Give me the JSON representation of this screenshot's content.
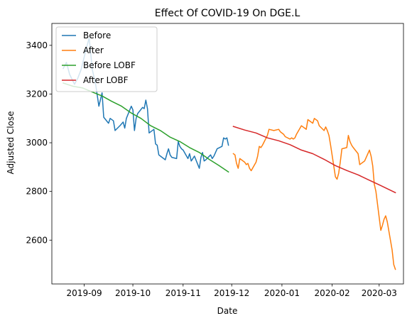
{
  "chart_data": {
    "type": "line",
    "title": "Effect Of COVID-19 On DGE.L",
    "xlabel": "Date",
    "ylabel": "Adjusted Close",
    "xlim": [
      "2019-08-12",
      "2020-03-16"
    ],
    "ylim": [
      2420,
      3490
    ],
    "x_ticks": [
      "2019-09-01",
      "2019-10-01",
      "2019-11-01",
      "2019-12-01",
      "2020-01-01",
      "2020-02-01",
      "2020-03-01"
    ],
    "x_tick_labels": [
      "2019-09",
      "2019-10",
      "2019-11",
      "2019-12",
      "2020-01",
      "2020-02",
      "2020-03"
    ],
    "y_ticks": [
      2600,
      2800,
      3000,
      3200,
      3400
    ],
    "y_tick_labels": [
      "2600",
      "2800",
      "3000",
      "3200",
      "3400"
    ],
    "grid": false,
    "legend_position": "top-left",
    "series": [
      {
        "name": "Before",
        "color": "#1f77b4",
        "points": [
          [
            "2019-08-19",
            3305
          ],
          [
            "2019-08-21",
            3330
          ],
          [
            "2019-08-23",
            3280
          ],
          [
            "2019-08-26",
            3240
          ],
          [
            "2019-08-28",
            3265
          ],
          [
            "2019-08-30",
            3300
          ],
          [
            "2019-09-02",
            3380
          ],
          [
            "2019-09-04",
            3430
          ],
          [
            "2019-09-06",
            3300
          ],
          [
            "2019-09-08",
            3240
          ],
          [
            "2019-09-10",
            3150
          ],
          [
            "2019-09-12",
            3205
          ],
          [
            "2019-09-13",
            3105
          ],
          [
            "2019-09-16",
            3080
          ],
          [
            "2019-09-17",
            3100
          ],
          [
            "2019-09-19",
            3090
          ],
          [
            "2019-09-20",
            3050
          ],
          [
            "2019-09-23",
            3070
          ],
          [
            "2019-09-25",
            3085
          ],
          [
            "2019-09-26",
            3060
          ],
          [
            "2019-09-27",
            3100
          ],
          [
            "2019-09-30",
            3150
          ],
          [
            "2019-10-01",
            3135
          ],
          [
            "2019-10-02",
            3050
          ],
          [
            "2019-10-03",
            3100
          ],
          [
            "2019-10-04",
            3120
          ],
          [
            "2019-10-07",
            3145
          ],
          [
            "2019-10-08",
            3140
          ],
          [
            "2019-10-09",
            3175
          ],
          [
            "2019-10-10",
            3140
          ],
          [
            "2019-10-11",
            3040
          ],
          [
            "2019-10-14",
            3055
          ],
          [
            "2019-10-15",
            2995
          ],
          [
            "2019-10-16",
            2990
          ],
          [
            "2019-10-17",
            2950
          ],
          [
            "2019-10-18",
            2945
          ],
          [
            "2019-10-21",
            2930
          ],
          [
            "2019-10-22",
            2955
          ],
          [
            "2019-10-23",
            2975
          ],
          [
            "2019-10-24",
            2950
          ],
          [
            "2019-10-25",
            2940
          ],
          [
            "2019-10-28",
            2935
          ],
          [
            "2019-10-29",
            3005
          ],
          [
            "2019-10-30",
            2985
          ],
          [
            "2019-10-31",
            2975
          ],
          [
            "2019-11-01",
            2970
          ],
          [
            "2019-11-04",
            2935
          ],
          [
            "2019-11-05",
            2955
          ],
          [
            "2019-11-06",
            2925
          ],
          [
            "2019-11-07",
            2935
          ],
          [
            "2019-11-08",
            2945
          ],
          [
            "2019-11-11",
            2895
          ],
          [
            "2019-11-12",
            2940
          ],
          [
            "2019-11-13",
            2960
          ],
          [
            "2019-11-14",
            2925
          ],
          [
            "2019-11-15",
            2930
          ],
          [
            "2019-11-18",
            2950
          ],
          [
            "2019-11-19",
            2935
          ],
          [
            "2019-11-20",
            2945
          ],
          [
            "2019-11-21",
            2960
          ],
          [
            "2019-11-22",
            2975
          ],
          [
            "2019-11-25",
            2985
          ],
          [
            "2019-11-26",
            3020
          ],
          [
            "2019-11-27",
            3015
          ],
          [
            "2019-11-28",
            3020
          ],
          [
            "2019-11-29",
            2990
          ]
        ]
      },
      {
        "name": "After",
        "color": "#ff7f0e",
        "points": [
          [
            "2019-12-02",
            2955
          ],
          [
            "2019-12-03",
            2950
          ],
          [
            "2019-12-04",
            2915
          ],
          [
            "2019-12-05",
            2895
          ],
          [
            "2019-12-06",
            2935
          ],
          [
            "2019-12-09",
            2920
          ],
          [
            "2019-12-10",
            2910
          ],
          [
            "2019-12-11",
            2915
          ],
          [
            "2019-12-12",
            2895
          ],
          [
            "2019-12-13",
            2885
          ],
          [
            "2019-12-16",
            2920
          ],
          [
            "2019-12-17",
            2945
          ],
          [
            "2019-12-18",
            2985
          ],
          [
            "2019-12-19",
            2980
          ],
          [
            "2019-12-20",
            2990
          ],
          [
            "2019-12-23",
            3030
          ],
          [
            "2019-12-24",
            3055
          ],
          [
            "2019-12-27",
            3050
          ],
          [
            "2019-12-30",
            3055
          ],
          [
            "2019-12-31",
            3045
          ],
          [
            "2020-01-02",
            3035
          ],
          [
            "2020-01-03",
            3025
          ],
          [
            "2020-01-06",
            3015
          ],
          [
            "2020-01-07",
            3020
          ],
          [
            "2020-01-08",
            3015
          ],
          [
            "2020-01-09",
            3020
          ],
          [
            "2020-01-10",
            3035
          ],
          [
            "2020-01-13",
            3070
          ],
          [
            "2020-01-14",
            3065
          ],
          [
            "2020-01-15",
            3060
          ],
          [
            "2020-01-16",
            3055
          ],
          [
            "2020-01-17",
            3095
          ],
          [
            "2020-01-20",
            3080
          ],
          [
            "2020-01-21",
            3100
          ],
          [
            "2020-01-22",
            3095
          ],
          [
            "2020-01-23",
            3090
          ],
          [
            "2020-01-24",
            3070
          ],
          [
            "2020-01-27",
            3050
          ],
          [
            "2020-01-28",
            3065
          ],
          [
            "2020-01-29",
            3050
          ],
          [
            "2020-01-30",
            3030
          ],
          [
            "2020-01-31",
            2990
          ],
          [
            "2020-02-03",
            2860
          ],
          [
            "2020-02-04",
            2850
          ],
          [
            "2020-02-05",
            2875
          ],
          [
            "2020-02-06",
            2920
          ],
          [
            "2020-02-07",
            2975
          ],
          [
            "2020-02-10",
            2980
          ],
          [
            "2020-02-11",
            3030
          ],
          [
            "2020-02-12",
            3005
          ],
          [
            "2020-02-13",
            2990
          ],
          [
            "2020-02-14",
            2980
          ],
          [
            "2020-02-17",
            2955
          ],
          [
            "2020-02-18",
            2910
          ],
          [
            "2020-02-19",
            2915
          ],
          [
            "2020-02-20",
            2920
          ],
          [
            "2020-02-21",
            2925
          ],
          [
            "2020-02-24",
            2970
          ],
          [
            "2020-02-25",
            2945
          ],
          [
            "2020-02-26",
            2905
          ],
          [
            "2020-02-27",
            2830
          ],
          [
            "2020-02-28",
            2800
          ],
          [
            "2020-03-02",
            2640
          ],
          [
            "2020-03-03",
            2660
          ],
          [
            "2020-03-04",
            2685
          ],
          [
            "2020-03-05",
            2700
          ],
          [
            "2020-03-06",
            2675
          ],
          [
            "2020-03-09",
            2560
          ],
          [
            "2020-03-10",
            2500
          ],
          [
            "2020-03-11",
            2480
          ]
        ]
      },
      {
        "name": "Before LOBF",
        "color": "#2ca02c",
        "points": [
          [
            "2019-08-19",
            3245
          ],
          [
            "2019-08-25",
            3232
          ],
          [
            "2019-08-31",
            3225
          ],
          [
            "2019-09-06",
            3208
          ],
          [
            "2019-09-12",
            3192
          ],
          [
            "2019-09-18",
            3170
          ],
          [
            "2019-09-24",
            3150
          ],
          [
            "2019-09-30",
            3122
          ],
          [
            "2019-10-06",
            3100
          ],
          [
            "2019-10-12",
            3070
          ],
          [
            "2019-10-18",
            3050
          ],
          [
            "2019-10-24",
            3023
          ],
          [
            "2019-10-30",
            3005
          ],
          [
            "2019-11-05",
            2980
          ],
          [
            "2019-11-11",
            2960
          ],
          [
            "2019-11-17",
            2932
          ],
          [
            "2019-11-23",
            2907
          ],
          [
            "2019-11-29",
            2880
          ]
        ]
      },
      {
        "name": "After LOBF",
        "color": "#d62728",
        "points": [
          [
            "2019-12-02",
            3067
          ],
          [
            "2019-12-09",
            3052
          ],
          [
            "2019-12-16",
            3040
          ],
          [
            "2019-12-23",
            3020
          ],
          [
            "2019-12-30",
            3008
          ],
          [
            "2020-01-06",
            2992
          ],
          [
            "2020-01-13",
            2970
          ],
          [
            "2020-01-20",
            2955
          ],
          [
            "2020-01-27",
            2932
          ],
          [
            "2020-02-03",
            2906
          ],
          [
            "2020-02-10",
            2886
          ],
          [
            "2020-02-17",
            2868
          ],
          [
            "2020-02-24",
            2846
          ],
          [
            "2020-03-02",
            2824
          ],
          [
            "2020-03-11",
            2795
          ]
        ]
      }
    ]
  }
}
